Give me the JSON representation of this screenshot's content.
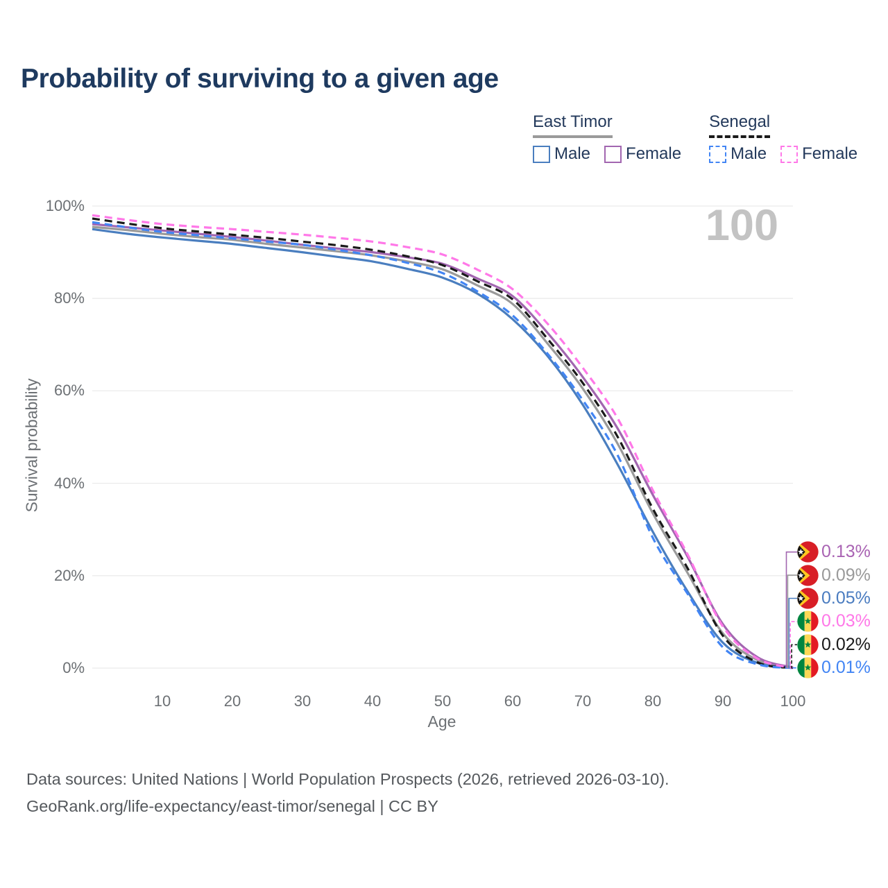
{
  "title": "Probability of surviving to a given age",
  "watermark": "100",
  "legend": {
    "groups": [
      {
        "label": "East Timor",
        "line_style": "solid",
        "underline_color": "#9a9a9a",
        "items": [
          {
            "label": "Male",
            "color": "#4a7ebf"
          },
          {
            "label": "Female",
            "color": "#a266b0"
          }
        ]
      },
      {
        "label": "Senegal",
        "line_style": "dashed",
        "underline_color": "#1a1a1a",
        "items": [
          {
            "label": "Male",
            "color": "#4285f4"
          },
          {
            "label": "Female",
            "color": "#ff78e8"
          }
        ]
      }
    ]
  },
  "chart_data": {
    "type": "line",
    "title": "Probability of surviving to a given age",
    "xlabel": "Age",
    "ylabel": "Survival probability",
    "xlim": [
      0,
      100
    ],
    "ylim": [
      0,
      100
    ],
    "grid": "horizontal-only",
    "x_ticks": [
      10,
      20,
      30,
      40,
      50,
      60,
      70,
      80,
      90,
      100
    ],
    "y_ticks": [
      {
        "value": 0,
        "label": "0%"
      },
      {
        "value": 20,
        "label": "20%"
      },
      {
        "value": 40,
        "label": "40%"
      },
      {
        "value": 60,
        "label": "60%"
      },
      {
        "value": 80,
        "label": "80%"
      },
      {
        "value": 100,
        "label": "100%"
      }
    ],
    "x": [
      0,
      5,
      10,
      15,
      20,
      25,
      30,
      35,
      40,
      45,
      50,
      55,
      60,
      65,
      70,
      75,
      80,
      85,
      90,
      95,
      100
    ],
    "series": [
      {
        "name": "East Timor Both sexes",
        "country": "east-timor",
        "color": "#9a9a9a",
        "dash": "solid",
        "values": [
          95.5,
          94.8,
          94.0,
          93.3,
          92.7,
          91.8,
          91.0,
          90.2,
          89.3,
          88.0,
          86.3,
          82.8,
          78.8,
          70.2,
          60.5,
          48.5,
          33.5,
          20.5,
          7.5,
          1.7,
          0.09
        ]
      },
      {
        "name": "East Timor Female",
        "country": "east-timor",
        "color": "#a266b0",
        "dash": "solid",
        "values": [
          96.1,
          95.4,
          94.7,
          94.0,
          93.3,
          92.5,
          91.6,
          90.8,
          90.0,
          88.9,
          87.5,
          84.3,
          80.5,
          72.5,
          63.0,
          51.8,
          37.5,
          24.0,
          9.5,
          2.3,
          0.13
        ]
      },
      {
        "name": "East Timor Male",
        "country": "east-timor",
        "color": "#4a7ebf",
        "dash": "solid",
        "values": [
          95.0,
          94.0,
          93.2,
          92.5,
          91.8,
          90.9,
          90.0,
          89.0,
          88.0,
          86.4,
          84.5,
          81.0,
          75.5,
          67.5,
          57.0,
          44.0,
          29.5,
          16.5,
          5.5,
          1.1,
          0.05
        ]
      },
      {
        "name": "Senegal Both sexes",
        "country": "senegal",
        "color": "#1a1a1a",
        "dash": "dashed",
        "values": [
          97.3,
          96.2,
          95.2,
          94.5,
          93.8,
          93.1,
          92.3,
          91.5,
          90.5,
          89.1,
          87.2,
          83.7,
          79.8,
          71.2,
          61.7,
          50.0,
          34.5,
          21.5,
          7.0,
          1.2,
          0.02
        ]
      },
      {
        "name": "Senegal Male",
        "country": "senegal",
        "color": "#4285f4",
        "dash": "dashed",
        "values": [
          96.5,
          95.4,
          94.4,
          93.7,
          93.0,
          92.3,
          91.6,
          90.5,
          89.3,
          87.7,
          85.5,
          81.5,
          76.3,
          68.0,
          58.0,
          46.0,
          28.2,
          16.0,
          4.5,
          0.8,
          0.01
        ]
      },
      {
        "name": "Senegal Female",
        "country": "senegal",
        "color": "#ff78e8",
        "dash": "dashed",
        "values": [
          98.0,
          97.0,
          96.1,
          95.5,
          95.0,
          94.4,
          93.8,
          93.1,
          92.3,
          91.1,
          89.5,
          86.2,
          82.0,
          74.5,
          65.0,
          54.0,
          38.5,
          24.5,
          9.0,
          2.0,
          0.03
        ]
      }
    ]
  },
  "end_labels": [
    {
      "value": "0.13%",
      "color": "#a963b3",
      "flag": "east-timor",
      "series_index": 1
    },
    {
      "value": "0.09%",
      "color": "#9a9a9a",
      "flag": "east-timor",
      "series_index": 0
    },
    {
      "value": "0.05%",
      "color": "#4a7cc0",
      "flag": "east-timor",
      "series_index": 2
    },
    {
      "value": "0.03%",
      "color": "#ff78e8",
      "flag": "senegal",
      "series_index": 5
    },
    {
      "value": "0.02%",
      "color": "#1a1a1a",
      "flag": "senegal",
      "series_index": 3
    },
    {
      "value": "0.01%",
      "color": "#4285f4",
      "flag": "senegal",
      "series_index": 4
    }
  ],
  "footer": {
    "line1": "Data sources: United Nations | World Population Prospects (2026, retrieved 2026-03-10).",
    "line2": "GeoRank.org/life-expectancy/east-timor/senegal | CC BY"
  }
}
